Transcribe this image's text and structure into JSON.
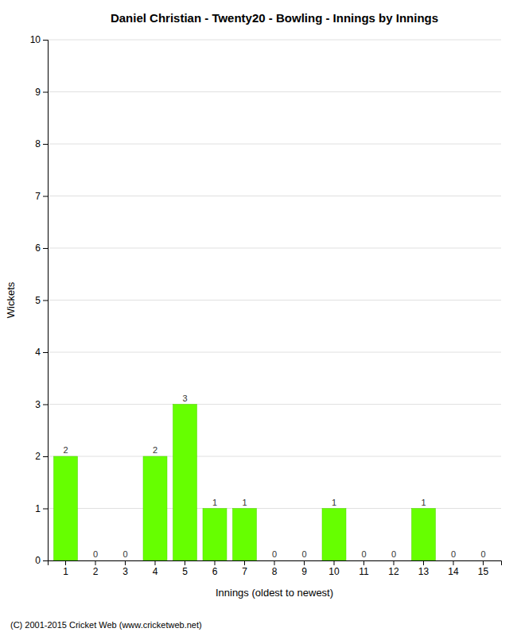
{
  "chart_data": {
    "type": "bar",
    "title": "Daniel Christian - Twenty20 - Bowling - Innings by Innings",
    "xlabel": "Innings (oldest to newest)",
    "ylabel": "Wickets",
    "categories": [
      1,
      2,
      3,
      4,
      5,
      6,
      7,
      8,
      9,
      10,
      11,
      12,
      13,
      14,
      15
    ],
    "values": [
      2,
      0,
      0,
      2,
      3,
      1,
      1,
      0,
      0,
      1,
      0,
      0,
      1,
      0,
      0
    ],
    "color": "#66ff00",
    "ylim": [
      0,
      10
    ],
    "yticks": [
      0,
      1,
      2,
      3,
      4,
      5,
      6,
      7,
      8,
      9,
      10
    ],
    "grid": true,
    "data_labels": true,
    "footer": "(C) 2001-2015 Cricket Web (www.cricketweb.net)"
  }
}
